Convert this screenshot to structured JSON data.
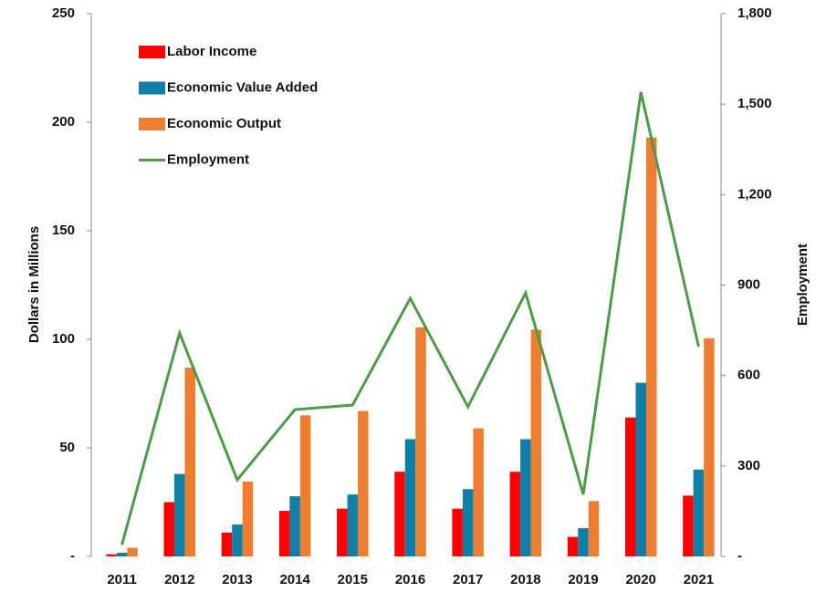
{
  "chart_data": {
    "type": "bar",
    "categories": [
      "2011",
      "2012",
      "2013",
      "2014",
      "2015",
      "2016",
      "2017",
      "2018",
      "2019",
      "2020",
      "2021"
    ],
    "series": [
      {
        "name": "Labor Income",
        "color": "#ff0000",
        "values": [
          1,
          25,
          11,
          21,
          22,
          39,
          22,
          39,
          9,
          64,
          28
        ]
      },
      {
        "name": "Economic Value Added",
        "color": "#0e7fa6",
        "values": [
          1.7,
          38,
          14.7,
          27.7,
          28.5,
          54,
          31,
          54,
          13,
          80,
          40
        ]
      },
      {
        "name": "Economic Output",
        "color": "#ed7d31",
        "values": [
          4,
          87,
          34.5,
          65,
          67,
          105.5,
          59,
          104.5,
          25.5,
          193,
          100.5
        ]
      },
      {
        "name": "Employment",
        "color": "#4e9a47",
        "type": "line",
        "axis": "y2",
        "values": [
          39,
          741,
          254,
          487,
          502,
          856,
          496,
          874,
          206,
          1540,
          696
        ]
      }
    ],
    "ylabel": "Dollars in Millions",
    "y2label": "Employment",
    "ylim": [
      0,
      250
    ],
    "yticks": [
      {
        "value": 0,
        "label": "-"
      },
      50,
      100,
      150,
      200,
      250
    ],
    "y2lim": [
      0,
      1800
    ],
    "y2ticks": [
      {
        "value": 0,
        "label": "-"
      },
      300,
      600,
      900,
      {
        "value": 1200,
        "label": "1,200"
      },
      {
        "value": 1500,
        "label": "1,500"
      },
      {
        "value": 1800,
        "label": "1,800"
      }
    ],
    "legend": "upper left"
  }
}
